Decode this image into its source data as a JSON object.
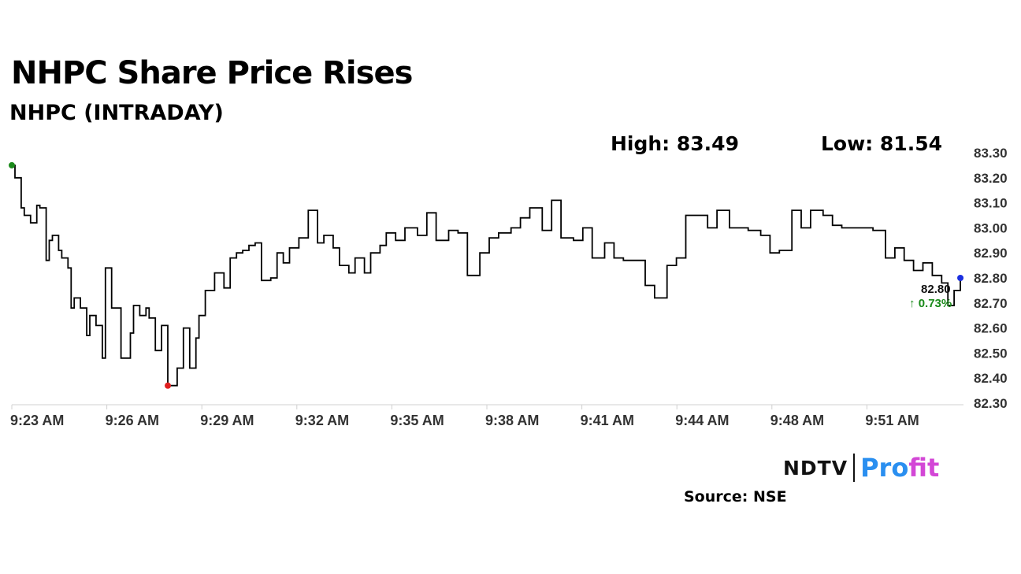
{
  "headline": "NHPC Share Price Rises",
  "chart_data": {
    "type": "line",
    "title": "NHPC (INTRADAY)",
    "high_label": "High: 83.49",
    "low_label": "Low: 81.54",
    "ylim": [
      82.3,
      83.3
    ],
    "yticks": [
      "83.30",
      "83.20",
      "83.10",
      "83.00",
      "82.90",
      "82.80",
      "82.70",
      "82.60",
      "82.50",
      "82.40",
      "82.30"
    ],
    "xticks": [
      "9:23 AM",
      "9:26 AM",
      "9:29 AM",
      "9:32 AM",
      "9:35 AM",
      "9:38 AM",
      "9:41 AM",
      "9:44 AM",
      "9:48 AM",
      "9:51 AM"
    ],
    "x_minutes_start": 0,
    "x_minutes_end": 30.5,
    "series": [
      {
        "x": [
          0,
          0.1,
          0.3,
          0.4,
          0.6,
          0.8,
          0.9,
          1.1,
          1.2,
          1.3,
          1.5,
          1.6,
          1.8,
          1.9,
          2.0,
          2.2,
          2.4,
          2.5,
          2.7,
          2.9,
          3.0,
          3.2,
          3.5,
          3.8,
          3.9,
          4.1,
          4.3,
          4.4,
          4.6,
          4.8,
          5.0,
          5.3,
          5.5,
          5.7,
          5.9,
          6.0,
          6.2,
          6.5,
          6.8,
          7.0,
          7.2,
          7.4,
          7.6,
          7.8,
          8.0,
          8.3,
          8.5,
          8.7,
          8.9,
          9.2,
          9.5,
          9.8,
          10.0,
          10.3,
          10.5,
          10.8,
          11.0,
          11.3,
          11.5,
          11.8,
          12.0,
          12.3,
          12.6,
          13.0,
          13.3,
          13.6,
          14.0,
          14.3,
          14.6,
          15.0,
          15.3,
          15.6,
          16.0,
          16.3,
          16.6,
          17.0,
          17.3,
          17.6,
          18.0,
          18.3,
          18.6,
          19.0,
          19.3,
          19.6,
          20.0,
          20.3,
          20.6,
          21.0,
          21.3,
          21.6,
          22.0,
          22.3,
          22.6,
          23.0,
          23.3,
          23.6,
          24.0,
          24.3,
          24.6,
          25.0,
          25.3,
          25.6,
          26.0,
          26.3,
          26.6,
          27.0,
          27.3,
          27.6,
          28.0,
          28.3,
          28.6,
          28.9,
          29.2,
          29.5,
          29.8,
          30.0,
          30.2,
          30.4
        ],
        "y": [
          83.25,
          83.2,
          83.08,
          83.05,
          83.02,
          83.09,
          83.08,
          82.87,
          82.95,
          82.97,
          82.91,
          82.88,
          82.84,
          82.68,
          82.72,
          82.68,
          82.57,
          82.65,
          82.61,
          82.48,
          82.84,
          82.68,
          82.48,
          82.58,
          82.69,
          82.65,
          82.68,
          82.64,
          82.51,
          82.61,
          82.37,
          82.44,
          82.6,
          82.44,
          82.56,
          82.65,
          82.75,
          82.82,
          82.76,
          82.88,
          82.9,
          82.91,
          82.93,
          82.94,
          82.79,
          82.8,
          82.9,
          82.86,
          82.92,
          82.96,
          83.07,
          82.94,
          82.97,
          82.92,
          82.85,
          82.82,
          82.88,
          82.82,
          82.9,
          82.93,
          82.98,
          82.95,
          83.0,
          82.97,
          83.06,
          82.95,
          82.99,
          82.98,
          82.81,
          82.9,
          82.96,
          82.98,
          83.0,
          83.04,
          83.08,
          82.99,
          83.11,
          82.96,
          82.95,
          83.0,
          82.88,
          82.94,
          82.88,
          82.87,
          82.87,
          82.77,
          82.72,
          82.85,
          82.88,
          83.05,
          83.05,
          83.0,
          83.07,
          83.0,
          83.0,
          82.99,
          82.97,
          82.9,
          82.91,
          83.07,
          83.0,
          83.07,
          83.05,
          83.01,
          83.0,
          83.0,
          83.0,
          82.99,
          82.88,
          82.92,
          82.87,
          82.83,
          82.86,
          82.81,
          82.78,
          82.69,
          82.75,
          82.8
        ]
      }
    ],
    "last_price": "82.80",
    "change_label": "↑ 0.73%",
    "colors": {
      "line": "#000000",
      "start_marker": "#1a8a1a",
      "low_marker": "#e02020",
      "end_marker": "#1b2fe0",
      "change": "#1a8a1a",
      "axis": "#d0d0d0"
    },
    "grid": false
  },
  "branding": {
    "logo_text_1": "NDTV",
    "logo_text_2a": "Pro",
    "logo_text_2b": "fit",
    "source": "Source: NSE"
  }
}
